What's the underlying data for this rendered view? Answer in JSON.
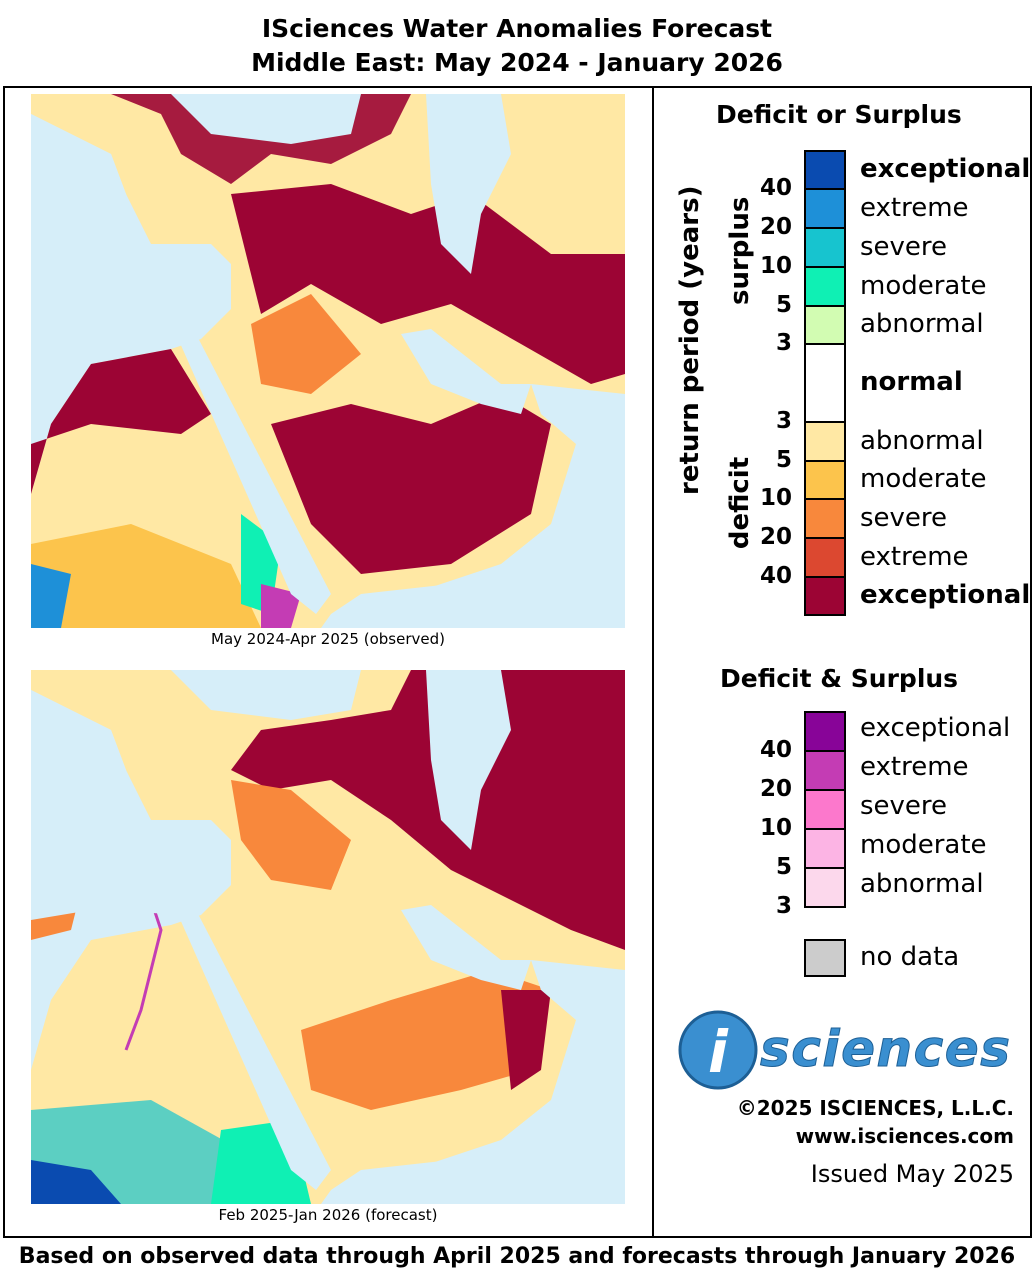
{
  "title": {
    "line1": "ISciences Water Anomalies Forecast",
    "line2": "Middle East: May 2024 - January 2026"
  },
  "maps": [
    {
      "caption": "May 2024-Apr 2025 (observed)"
    },
    {
      "caption": "Feb 2025-Jan 2026 (forecast)"
    }
  ],
  "legend": {
    "title": "Deficit or Surplus",
    "axis_label": "return period (years)",
    "surplus_label": "surplus",
    "deficit_label": "deficit",
    "classes": [
      {
        "label": "exceptional",
        "color": "#0a4bb0",
        "bold": true
      },
      {
        "label": "extreme",
        "color": "#1e90d8"
      },
      {
        "label": "severe",
        "color": "#17c4cf"
      },
      {
        "label": "moderate",
        "color": "#0ff0b4"
      },
      {
        "label": "abnormal",
        "color": "#d2fcb2"
      },
      {
        "label": "normal",
        "color": "#ffffff",
        "bold": true
      },
      {
        "label": "abnormal",
        "color": "#ffe8a4"
      },
      {
        "label": "moderate",
        "color": "#fcc44c"
      },
      {
        "label": "severe",
        "color": "#f8883c"
      },
      {
        "label": "extreme",
        "color": "#dc4830"
      },
      {
        "label": "exceptional",
        "color": "#9c0434",
        "bold": true
      }
    ],
    "surplus_ticks": [
      "40",
      "20",
      "10",
      "5",
      "3"
    ],
    "deficit_ticks": [
      "3",
      "5",
      "10",
      "20",
      "40"
    ],
    "both": {
      "title": "Deficit & Surplus",
      "classes": [
        {
          "label": "exceptional",
          "color": "#880498"
        },
        {
          "label": "extreme",
          "color": "#c43cb4"
        },
        {
          "label": "severe",
          "color": "#fc78cc"
        },
        {
          "label": "moderate",
          "color": "#fcb4e4"
        },
        {
          "label": "abnormal",
          "color": "#fcd8ec"
        }
      ],
      "ticks": [
        "40",
        "20",
        "10",
        "5",
        "3"
      ]
    },
    "no_data": {
      "label": "no data",
      "color": "#cccccc"
    }
  },
  "branding": {
    "logo_letter": "i",
    "logo_text": "sciences",
    "copyright": "©2025 ISCIENCES, L.L.C.",
    "url": "www.isciences.com",
    "issued": "Issued May 2025"
  },
  "footer": "Based on observed data through April 2025 and forecasts through January 2026",
  "colors": {
    "sea": "#d6eef9",
    "border": "#333333"
  }
}
